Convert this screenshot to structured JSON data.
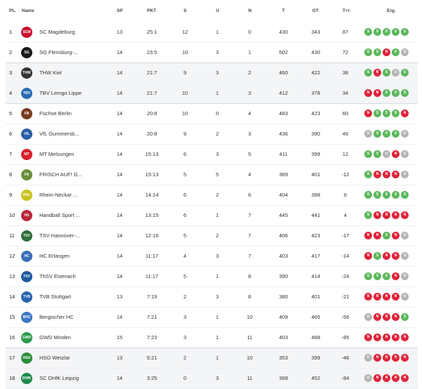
{
  "header": {
    "pl": "PL.",
    "name": "Name",
    "sp": "SP",
    "pkt": "PKT",
    "s": "S",
    "u": "U",
    "n": "N",
    "t": "T",
    "gt": "GT",
    "td": "T+/-",
    "erg": "Erg."
  },
  "colors": {
    "win": "#5cb85c",
    "loss": "#e0243a",
    "draw": "#b5b5b5"
  },
  "rows": [
    {
      "rank": "1",
      "name": "SC Magdeburg",
      "logo_text": "SCM",
      "logo_color": "#c8102e",
      "sp": "13",
      "pkt": "25:1",
      "s": "12",
      "u": "1",
      "n": "0",
      "t": "430",
      "gt": "343",
      "td": "87",
      "results": [
        "S",
        "S",
        "S",
        "S",
        "S"
      ]
    },
    {
      "rank": "2",
      "name": "SG Flensburg-...",
      "logo_text": "SG",
      "logo_color": "#1a1a1a",
      "sp": "14",
      "pkt": "23:5",
      "s": "10",
      "u": "3",
      "n": "1",
      "t": "502",
      "gt": "430",
      "td": "72",
      "results": [
        "S",
        "S",
        "N",
        "S",
        "U"
      ]
    },
    {
      "rank": "3",
      "name": "THW Kiel",
      "logo_text": "THW",
      "logo_color": "#333333",
      "sp": "14",
      "pkt": "21:7",
      "s": "9",
      "u": "3",
      "n": "2",
      "t": "460",
      "gt": "422",
      "td": "38",
      "results": [
        "S",
        "N",
        "S",
        "U",
        "S"
      ]
    },
    {
      "rank": "4",
      "name": "TBV Lemgo Lippe",
      "logo_text": "TBV",
      "logo_color": "#2a6db5",
      "sp": "14",
      "pkt": "21:7",
      "s": "10",
      "u": "1",
      "n": "3",
      "t": "412",
      "gt": "378",
      "td": "34",
      "results": [
        "N",
        "N",
        "S",
        "S",
        "S"
      ]
    },
    {
      "rank": "5",
      "name": "Füchse Berlin",
      "logo_text": "FB",
      "logo_color": "#7a3b1e",
      "sp": "14",
      "pkt": "20:8",
      "s": "10",
      "u": "0",
      "n": "4",
      "t": "483",
      "gt": "423",
      "td": "60",
      "results": [
        "N",
        "S",
        "S",
        "S",
        "N"
      ]
    },
    {
      "rank": "6",
      "name": "VfL Gummersb...",
      "logo_text": "VfL",
      "logo_color": "#2a5fa8",
      "sp": "14",
      "pkt": "20:8",
      "s": "9",
      "u": "2",
      "n": "3",
      "t": "436",
      "gt": "390",
      "td": "46",
      "results": [
        "U",
        "S",
        "S",
        "S",
        "U"
      ]
    },
    {
      "rank": "7",
      "name": "MT Melsungen",
      "logo_text": "MT",
      "logo_color": "#d81e2c",
      "sp": "14",
      "pkt": "15:13",
      "s": "6",
      "u": "3",
      "n": "5",
      "t": "411",
      "gt": "399",
      "td": "12",
      "results": [
        "S",
        "S",
        "U",
        "N",
        "U"
      ]
    },
    {
      "rank": "8",
      "name": "FRISCH AUF! G...",
      "logo_text": "FA",
      "logo_color": "#6a8f3a",
      "sp": "14",
      "pkt": "15:13",
      "s": "5",
      "u": "5",
      "n": "4",
      "t": "389",
      "gt": "401",
      "td": "-12",
      "results": [
        "S",
        "N",
        "N",
        "N",
        "U"
      ]
    },
    {
      "rank": "9",
      "name": "Rhein-Neckar ...",
      "logo_text": "RNL",
      "logo_color": "#c9c21a",
      "sp": "14",
      "pkt": "14:14",
      "s": "6",
      "u": "2",
      "n": "6",
      "t": "404",
      "gt": "398",
      "td": "6",
      "results": [
        "S",
        "S",
        "S",
        "S",
        "S"
      ]
    },
    {
      "rank": "10",
      "name": "Handball Sport ...",
      "logo_text": "HS",
      "logo_color": "#b8263a",
      "sp": "14",
      "pkt": "13:15",
      "s": "6",
      "u": "1",
      "n": "7",
      "t": "445",
      "gt": "441",
      "td": "4",
      "results": [
        "S",
        "N",
        "N",
        "N",
        "N"
      ]
    },
    {
      "rank": "11",
      "name": "TSV Hannover-...",
      "logo_text": "TSV",
      "logo_color": "#2f6e3a",
      "sp": "14",
      "pkt": "12:16",
      "s": "5",
      "u": "2",
      "n": "7",
      "t": "406",
      "gt": "423",
      "td": "-17",
      "results": [
        "N",
        "N",
        "S",
        "N",
        "U"
      ]
    },
    {
      "rank": "12",
      "name": "HC Erlangen",
      "logo_text": "HC",
      "logo_color": "#3a6fb8",
      "sp": "14",
      "pkt": "11:17",
      "s": "4",
      "u": "3",
      "n": "7",
      "t": "403",
      "gt": "417",
      "td": "-14",
      "results": [
        "N",
        "S",
        "N",
        "N",
        "U"
      ]
    },
    {
      "rank": "13",
      "name": "ThSV Eisenach",
      "logo_text": "TSV",
      "logo_color": "#1f5aa0",
      "sp": "14",
      "pkt": "11:17",
      "s": "5",
      "u": "1",
      "n": "8",
      "t": "390",
      "gt": "414",
      "td": "-24",
      "results": [
        "S",
        "S",
        "S",
        "N",
        "U"
      ]
    },
    {
      "rank": "14",
      "name": "TVB Stuttgart",
      "logo_text": "TVB",
      "logo_color": "#2a64b0",
      "sp": "13",
      "pkt": "7:19",
      "s": "2",
      "u": "3",
      "n": "8",
      "t": "380",
      "gt": "401",
      "td": "-21",
      "results": [
        "N",
        "N",
        "N",
        "N",
        "U"
      ]
    },
    {
      "rank": "15",
      "name": "Bergischer HC",
      "logo_text": "BHC",
      "logo_color": "#3b78c3",
      "sp": "14",
      "pkt": "7:21",
      "s": "3",
      "u": "1",
      "n": "10",
      "t": "409",
      "gt": "465",
      "td": "-56",
      "results": [
        "U",
        "N",
        "N",
        "N",
        "S"
      ]
    },
    {
      "rank": "16",
      "name": "GWD Minden",
      "logo_text": "GWD",
      "logo_color": "#2b9b4a",
      "sp": "15",
      "pkt": "7:23",
      "s": "3",
      "u": "1",
      "n": "11",
      "t": "403",
      "gt": "488",
      "td": "-85",
      "results": [
        "N",
        "N",
        "N",
        "N",
        "N"
      ]
    },
    {
      "rank": "17",
      "name": "HSG Wetzlar",
      "logo_text": "HSG",
      "logo_color": "#2b8f3c",
      "sp": "13",
      "pkt": "5:21",
      "s": "2",
      "u": "1",
      "n": "10",
      "t": "353",
      "gt": "399",
      "td": "-46",
      "results": [
        "U",
        "N",
        "N",
        "N",
        "N"
      ]
    },
    {
      "rank": "18",
      "name": "SC DHfK Leipzig",
      "logo_text": "DHfK",
      "logo_color": "#1d8a4a",
      "sp": "14",
      "pkt": "3:25",
      "s": "0",
      "u": "3",
      "n": "11",
      "t": "368",
      "gt": "452",
      "td": "-84",
      "results": [
        "U",
        "N",
        "N",
        "N",
        "N"
      ]
    }
  ]
}
